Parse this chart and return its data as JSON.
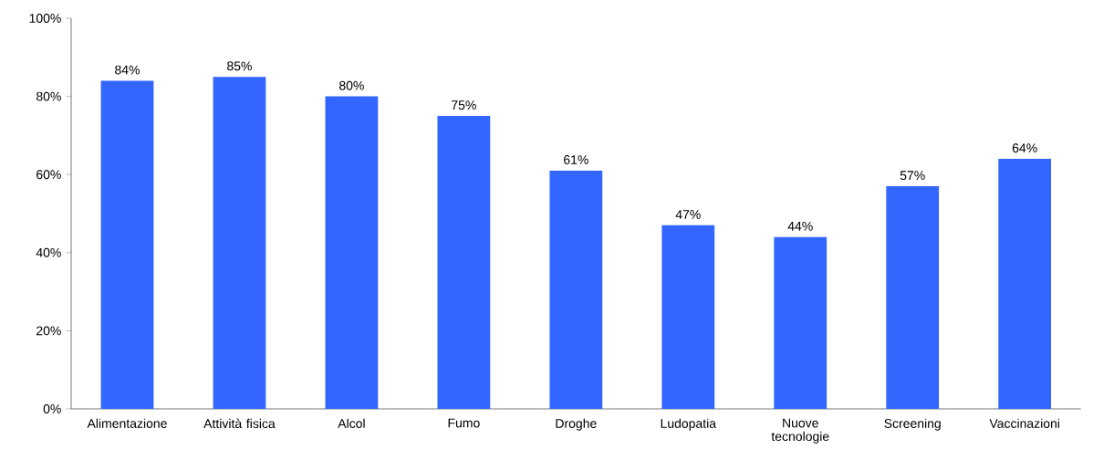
{
  "chart_data": {
    "type": "bar",
    "categories": [
      "Alimentazione",
      "Attività fisica",
      "Alcol",
      "Fumo",
      "Droghe",
      "Ludopatia",
      "Nuove tecnologie",
      "Screening",
      "Vaccinazioni"
    ],
    "values": [
      84,
      85,
      80,
      75,
      61,
      47,
      44,
      57,
      64
    ],
    "value_labels": [
      "84%",
      "85%",
      "80%",
      "75%",
      "61%",
      "47%",
      "44%",
      "57%",
      "64%"
    ],
    "color": "#3366ff",
    "ylim": [
      0,
      100
    ],
    "yticks": [
      {
        "value": 0,
        "label": "0%"
      },
      {
        "value": 20,
        "label": "20%"
      },
      {
        "value": 40,
        "label": "40%"
      },
      {
        "value": 60,
        "label": "60%"
      },
      {
        "value": 80,
        "label": "80%"
      },
      {
        "value": 100,
        "label": "100%"
      }
    ]
  }
}
